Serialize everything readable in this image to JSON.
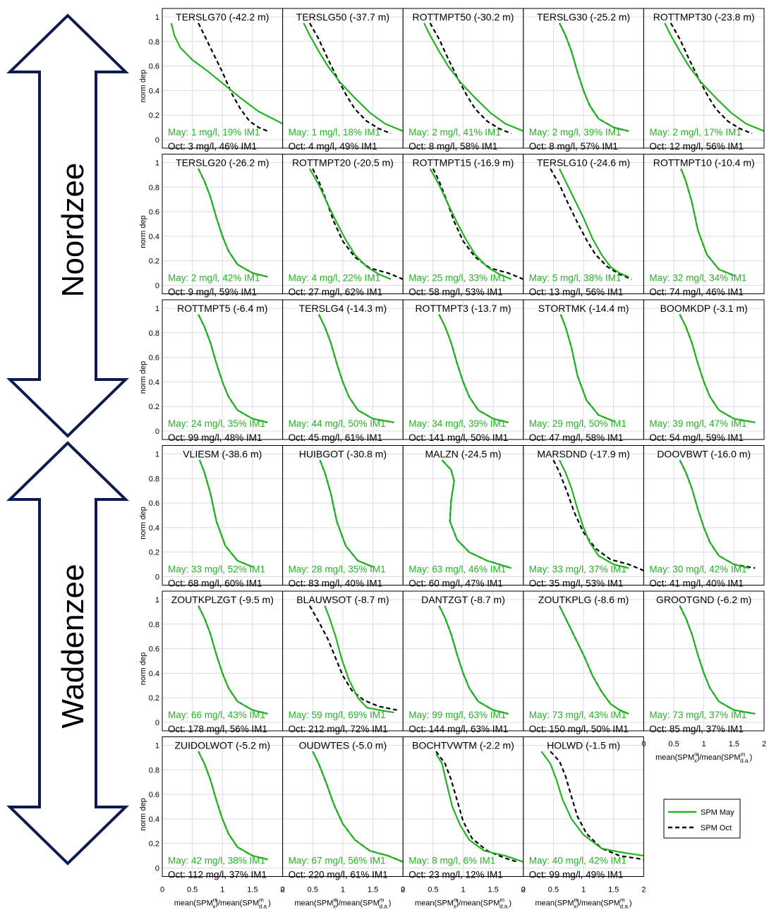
{
  "figure": {
    "region_labels": {
      "north": "Noordzee",
      "south": "Waddenzee"
    },
    "legend": {
      "may": "SPM May",
      "oct": "SPM Oct"
    },
    "ylabel": "norm dep",
    "xlabel": "mean(SPM_x^m)/mean(SPM_d.a.^m)",
    "yticks": [
      "0",
      "0.2",
      "0.4",
      "0.6",
      "0.8",
      "1"
    ],
    "xticks": [
      "0",
      "0.5",
      "1",
      "1.5",
      "2"
    ],
    "colors": {
      "may": "#22b322",
      "oct": "#000000",
      "arrow": "#0b1a4f",
      "grid": "#dcdcdc"
    }
  },
  "chart_data": {
    "type": "line",
    "xlim": [
      0,
      2
    ],
    "ylim": [
      0,
      1
    ],
    "grid": true,
    "series_names": [
      "SPM May",
      "SPM Oct"
    ],
    "shapes": {
      "s_default": {
        "x": [
          0.6,
          0.7,
          0.8,
          0.9,
          1.0,
          1.1,
          1.25,
          1.5,
          1.75
        ],
        "y": [
          0.95,
          0.85,
          0.72,
          0.55,
          0.4,
          0.28,
          0.17,
          0.1,
          0.07
        ]
      },
      "s_default_end": {
        "x": [
          0.6,
          0.7,
          0.8,
          0.9,
          1.0,
          1.1,
          1.25,
          1.5,
          1.85
        ],
        "y": [
          0.95,
          0.85,
          0.72,
          0.55,
          0.4,
          0.28,
          0.17,
          0.1,
          0.07
        ]
      },
      "s_wide": {
        "x": [
          0.45,
          0.6,
          0.75,
          0.9,
          1.05,
          1.2,
          1.4,
          1.6,
          1.8
        ],
        "y": [
          0.95,
          0.82,
          0.66,
          0.51,
          0.37,
          0.25,
          0.15,
          0.09,
          0.05
        ]
      },
      "s_late": {
        "x": [
          0.6,
          0.8,
          1.0,
          1.15,
          1.3,
          1.45,
          1.6,
          1.75
        ],
        "y": [
          0.95,
          0.75,
          0.55,
          0.38,
          0.25,
          0.15,
          0.1,
          0.07
        ]
      },
      "s_shallow": {
        "x": [
          0.15,
          0.2,
          0.3,
          0.5,
          0.75,
          1.0,
          1.3,
          1.6,
          2.0
        ],
        "y": [
          0.95,
          0.85,
          0.75,
          0.65,
          0.56,
          0.46,
          0.34,
          0.23,
          0.13
        ]
      },
      "s_mid": {
        "x": [
          0.35,
          0.45,
          0.6,
          0.75,
          0.95,
          1.2,
          1.45,
          1.7,
          2.0
        ],
        "y": [
          0.95,
          0.85,
          0.72,
          0.6,
          0.47,
          0.34,
          0.22,
          0.13,
          0.07
        ]
      },
      "s_oct_steep": {
        "x": [
          0.62,
          0.7,
          0.8,
          0.9,
          1.05,
          1.25,
          1.5
        ],
        "y": [
          0.95,
          0.85,
          0.68,
          0.45,
          0.25,
          0.13,
          0.08
        ]
      },
      "s_malzn": {
        "x": [
          0.65,
          0.8,
          0.85,
          0.8,
          0.78,
          0.9,
          1.1,
          1.4,
          1.8
        ],
        "y": [
          0.95,
          0.87,
          0.78,
          0.62,
          0.45,
          0.3,
          0.2,
          0.13,
          0.07
        ]
      },
      "s_blauw_may": {
        "x": [
          0.7,
          0.78,
          0.88,
          0.98,
          1.1,
          1.25,
          1.4,
          1.6,
          1.85
        ],
        "y": [
          0.95,
          0.85,
          0.7,
          0.52,
          0.35,
          0.2,
          0.12,
          0.1,
          0.08
        ]
      },
      "s_blauw_oct": {
        "x": [
          0.45,
          0.6,
          0.75,
          0.9,
          1.0,
          1.15,
          1.35,
          1.6,
          1.9
        ],
        "y": [
          0.95,
          0.82,
          0.68,
          0.5,
          0.38,
          0.26,
          0.18,
          0.13,
          0.1
        ]
      },
      "s_kink": {
        "x": [
          0.5,
          0.6,
          0.72,
          0.85,
          1.0,
          1.2,
          1.45,
          1.75,
          2.0
        ],
        "y": [
          0.95,
          0.85,
          0.7,
          0.52,
          0.36,
          0.23,
          0.14,
          0.1,
          0.05
        ]
      },
      "s_bocht_may": {
        "x": [
          0.55,
          0.65,
          0.72,
          0.82,
          0.95,
          1.1,
          1.35,
          1.7,
          2.0
        ],
        "y": [
          0.93,
          0.85,
          0.7,
          0.5,
          0.35,
          0.23,
          0.14,
          0.1,
          0.05
        ]
      },
      "s_bocht_oct": {
        "x": [
          0.55,
          0.7,
          0.8,
          0.9,
          1.0,
          1.15,
          1.4,
          1.7,
          1.9
        ],
        "y": [
          0.95,
          0.85,
          0.72,
          0.55,
          0.38,
          0.24,
          0.14,
          0.08,
          0.05
        ]
      },
      "s_holwd_may": {
        "x": [
          0.3,
          0.45,
          0.55,
          0.65,
          0.8,
          1.0,
          1.3,
          1.6,
          2.0
        ],
        "y": [
          0.95,
          0.85,
          0.72,
          0.56,
          0.4,
          0.27,
          0.16,
          0.13,
          0.1
        ]
      },
      "s_holwd_oct": {
        "x": [
          0.45,
          0.6,
          0.7,
          0.8,
          0.9,
          1.05,
          1.3,
          1.6,
          2.0
        ],
        "y": [
          0.95,
          0.87,
          0.75,
          0.58,
          0.42,
          0.28,
          0.16,
          0.1,
          0.07
        ]
      }
    },
    "panels": [
      {
        "title": "TERSLG70 (-42.2 m)",
        "may_label": "May: 1 mg/l, 19% IM1",
        "oct_label": "Oct: 3 mg/l, 46% IM1",
        "may": "s_shallow",
        "oct": "s_late"
      },
      {
        "title": "TERSLG50 (-37.7 m)",
        "may_label": "May: 1 mg/l, 18% IM1",
        "oct_label": "Oct: 4 mg/l, 49% IM1",
        "may": "s_mid",
        "oct": "s_wide"
      },
      {
        "title": "ROTTMPT50 (-30.2 m)",
        "may_label": "May: 2 mg/l, 41% IM1",
        "oct_label": "Oct: 8 mg/l, 58% IM1",
        "may": "s_mid",
        "oct": "s_wide"
      },
      {
        "title": "TERSLG30 (-25.2 m)",
        "may_label": "May: 2 mg/l, 39% IM1",
        "oct_label": "Oct: 8 mg/l, 57% IM1",
        "may": "s_default",
        "oct": "s_default"
      },
      {
        "title": "ROTTMPT30 (-23.8 m)",
        "may_label": "May: 2 mg/l, 17% IM1",
        "oct_label": "Oct: 12 mg/l, 56% IM1",
        "may": "s_mid",
        "oct": "s_wide"
      },
      {
        "title": "TERSLG20 (-26.2 m)",
        "may_label": "May: 2 mg/l, 42% IM1",
        "oct_label": "Oct: 9 mg/l, 59% IM1",
        "may": "s_default",
        "oct": "s_default"
      },
      {
        "title": "ROTTMPT20 (-20.5 m)",
        "may_label": "May: 4 mg/l, 22% IM1",
        "oct_label": "Oct: 27 mg/l, 62% IM1",
        "may": "s_wide",
        "oct": "s_kink"
      },
      {
        "title": "ROTTMPT15 (-16.9 m)",
        "may_label": "May: 25 mg/l, 33% IM1",
        "oct_label": "Oct: 58 mg/l, 53% IM1",
        "may": "s_wide",
        "oct": "s_kink"
      },
      {
        "title": "TERSLG10 (-24.6 m)",
        "may_label": "May: 5 mg/l, 38% IM1",
        "oct_label": "Oct: 13 mg/l, 56% IM1",
        "may": "s_late",
        "oct": "s_wide"
      },
      {
        "title": "ROTTMPT10 (-10.4 m)",
        "may_label": "May: 32 mg/l, 34% IM1",
        "oct_label": "Oct: 74 mg/l, 46% IM1",
        "may": "s_oct_steep",
        "oct": "s_oct_steep"
      },
      {
        "title": "ROTTMPT5 (-6.4 m)",
        "may_label": "May: 24 mg/l, 35% IM1",
        "oct_label": "Oct: 99 mg/l, 48% IM1",
        "may": "s_default",
        "oct": "s_default"
      },
      {
        "title": "TERSLG4 (-14.3 m)",
        "may_label": "May: 44 mg/l, 50% IM1",
        "oct_label": "Oct: 45 mg/l, 61% IM1",
        "may": "s_default_end",
        "oct": "s_default_end"
      },
      {
        "title": "ROTTMPT3 (-13.7 m)",
        "may_label": "May: 34 mg/l, 39% IM1",
        "oct_label": "Oct: 141 mg/l, 50% IM1",
        "may": "s_default",
        "oct": "s_default"
      },
      {
        "title": "STORTMK (-14.4 m)",
        "may_label": "May: 29 mg/l, 50% IM1",
        "oct_label": "Oct: 47 mg/l, 58% IM1",
        "may": "s_oct_steep",
        "oct": "s_oct_steep"
      },
      {
        "title": "BOOMKDP (-3.1 m)",
        "may_label": "May: 39 mg/l, 47% IM1",
        "oct_label": "Oct: 54 mg/l, 59% IM1",
        "may": "s_default_end",
        "oct": "s_default_end"
      },
      {
        "title": "VLIESM (-38.6 m)",
        "may_label": "May: 33 mg/l, 52% IM1",
        "oct_label": "Oct: 68 mg/l, 60% IM1",
        "may": "s_oct_steep",
        "oct": "s_oct_steep"
      },
      {
        "title": "HUIBGOT (-30.8 m)",
        "may_label": "May: 28 mg/l, 35% IM1",
        "oct_label": "Oct: 83 mg/l, 40% IM1",
        "may": "s_oct_steep",
        "oct": "s_oct_steep"
      },
      {
        "title": "MALZN (-24.5 m)",
        "may_label": "May: 63 mg/l, 46% IM1",
        "oct_label": "Oct: 60 mg/l, 47% IM1",
        "may": "s_malzn",
        "oct": "s_malzn"
      },
      {
        "title": "MARSDND (-17.9 m)",
        "may_label": "May: 33 mg/l, 37% IM1",
        "oct_label": "Oct: 35 mg/l, 53% IM1",
        "may": "s_default",
        "oct": "s_kink"
      },
      {
        "title": "DOOVBWT (-16.0 m)",
        "may_label": "May: 30 mg/l, 42% IM1",
        "oct_label": "Oct: 41 mg/l, 40% IM1",
        "may": "s_default",
        "oct": "s_default_end"
      },
      {
        "title": "ZOUTKPLZGT (-9.5 m)",
        "may_label": "May: 66 mg/l, 43% IM1",
        "oct_label": "Oct: 178 mg/l, 56% IM1",
        "may": "s_default",
        "oct": "s_default"
      },
      {
        "title": "BLAUWSOT (-8.7 m)",
        "may_label": "May: 59 mg/l, 69% IM1",
        "oct_label": "Oct: 212 mg/l, 72% IM1",
        "may": "s_blauw_may",
        "oct": "s_blauw_oct"
      },
      {
        "title": "DANTZGT (-8.7 m)",
        "may_label": "May: 99 mg/l, 63% IM1",
        "oct_label": "Oct: 144 mg/l, 63% IM1",
        "may": "s_default",
        "oct": "s_default"
      },
      {
        "title": "ZOUTKPLG (-8.6 m)",
        "may_label": "May: 73 mg/l, 43% IM1",
        "oct_label": "Oct: 150 mg/l, 50% IM1",
        "may": "s_late",
        "oct": "s_late"
      },
      {
        "title": "GROOTGND (-6.2 m)",
        "may_label": "May: 73 mg/l, 37% IM1",
        "oct_label": "Oct: 85 mg/l, 37% IM1",
        "may": "s_default_end",
        "oct": "s_default_end"
      },
      {
        "title": "ZUIDOLWOT (-5.2 m)",
        "may_label": "May: 42 mg/l, 38% IM1",
        "oct_label": "Oct: 112 mg/l, 37% IM1",
        "may": "s_default",
        "oct": "s_default"
      },
      {
        "title": "OUDWTES (-5.0 m)",
        "may_label": "May: 67 mg/l, 56% IM1",
        "oct_label": "Oct: 220 mg/l, 61% IM1",
        "may": "s_kink",
        "oct": "s_kink"
      },
      {
        "title": "BOCHTVWTM (-2.2 m)",
        "may_label": "May: 8 mg/l, 6% IM1",
        "oct_label": "Oct: 23 mg/l, 12% IM1",
        "may": "s_bocht_may",
        "oct": "s_bocht_oct"
      },
      {
        "title": "HOLWD (-1.5 m)",
        "may_label": "May: 40 mg/l, 42% IM1",
        "oct_label": "Oct: 99 mg/l, 49% IM1",
        "may": "s_holwd_may",
        "oct": "s_holwd_oct"
      }
    ]
  }
}
